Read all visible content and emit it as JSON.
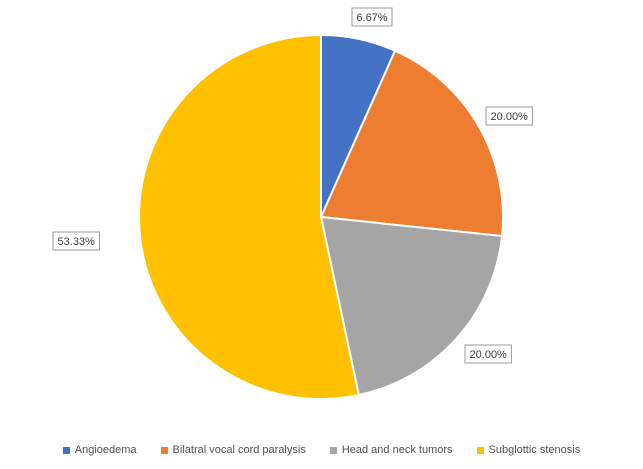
{
  "chart_data": {
    "type": "pie",
    "title": "",
    "categories": [
      "Angioedema",
      "Bilatral vocal cord paralysis",
      "Head and neck tumors",
      "Subglottic stenosis"
    ],
    "values": [
      6.67,
      20.0,
      20.0,
      53.33
    ],
    "labels": [
      "6.67%",
      "20.00%",
      "20.00%",
      "53.33%"
    ],
    "colors": [
      "#4472C4",
      "#ED7D31",
      "#A5A5A5",
      "#FFC000"
    ],
    "start_angle_deg": 0,
    "direction": "clockwise",
    "legend_position": "bottom"
  }
}
